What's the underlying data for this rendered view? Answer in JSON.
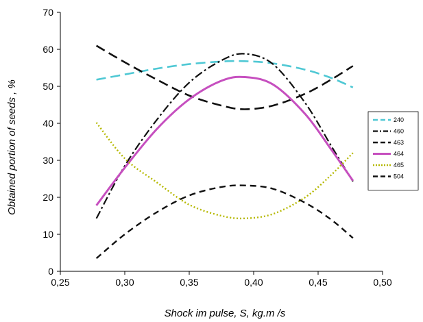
{
  "chart_data": {
    "type": "line",
    "title": "",
    "xlabel": "Shock im pulse, S, kg.m /s",
    "ylabel": "Obtained portion of seeds , %",
    "xlim": [
      0.25,
      0.5
    ],
    "ylim": [
      0,
      70
    ],
    "x_ticks": [
      "0,25",
      "0,30",
      "0,35",
      "0,40",
      "0,45",
      "0,50"
    ],
    "y_ticks": [
      "0",
      "10",
      "20",
      "30",
      "40",
      "50",
      "60",
      "70"
    ],
    "grid": false,
    "legend_position": "right",
    "x": [
      0.278,
      0.3,
      0.325,
      0.35,
      0.375,
      0.393,
      0.415,
      0.44,
      0.46,
      0.477
    ],
    "series": [
      {
        "name": "240",
        "color": "#4fc8d4",
        "dash": "long-dash",
        "values": [
          51.8,
          53.2,
          54.8,
          56.0,
          56.7,
          56.8,
          56.2,
          54.5,
          52.3,
          49.7
        ]
      },
      {
        "name": "460",
        "color": "#111111",
        "dash": "dash-dot",
        "values": [
          14.3,
          28.5,
          41.0,
          51.0,
          57.0,
          58.8,
          56.0,
          45.5,
          34.0,
          24.3
        ]
      },
      {
        "name": "463",
        "color": "#111111",
        "dash": "long-dash",
        "values": [
          61.0,
          56.5,
          51.8,
          47.5,
          44.8,
          43.8,
          44.8,
          48.0,
          51.8,
          55.5
        ]
      },
      {
        "name": "464",
        "color": "#c64fbf",
        "dash": "solid",
        "values": [
          17.8,
          28.0,
          38.5,
          46.5,
          51.5,
          52.5,
          50.5,
          42.5,
          33.0,
          24.5
        ]
      },
      {
        "name": "465",
        "color": "#b5b800",
        "dash": "dotted",
        "values": [
          40.2,
          30.5,
          24.0,
          18.0,
          15.0,
          14.3,
          15.5,
          20.0,
          26.0,
          32.0
        ]
      },
      {
        "name": "504",
        "color": "#111111",
        "dash": "dash",
        "values": [
          3.5,
          10.0,
          16.0,
          20.5,
          22.8,
          23.2,
          22.3,
          18.5,
          14.0,
          9.0
        ]
      }
    ]
  }
}
